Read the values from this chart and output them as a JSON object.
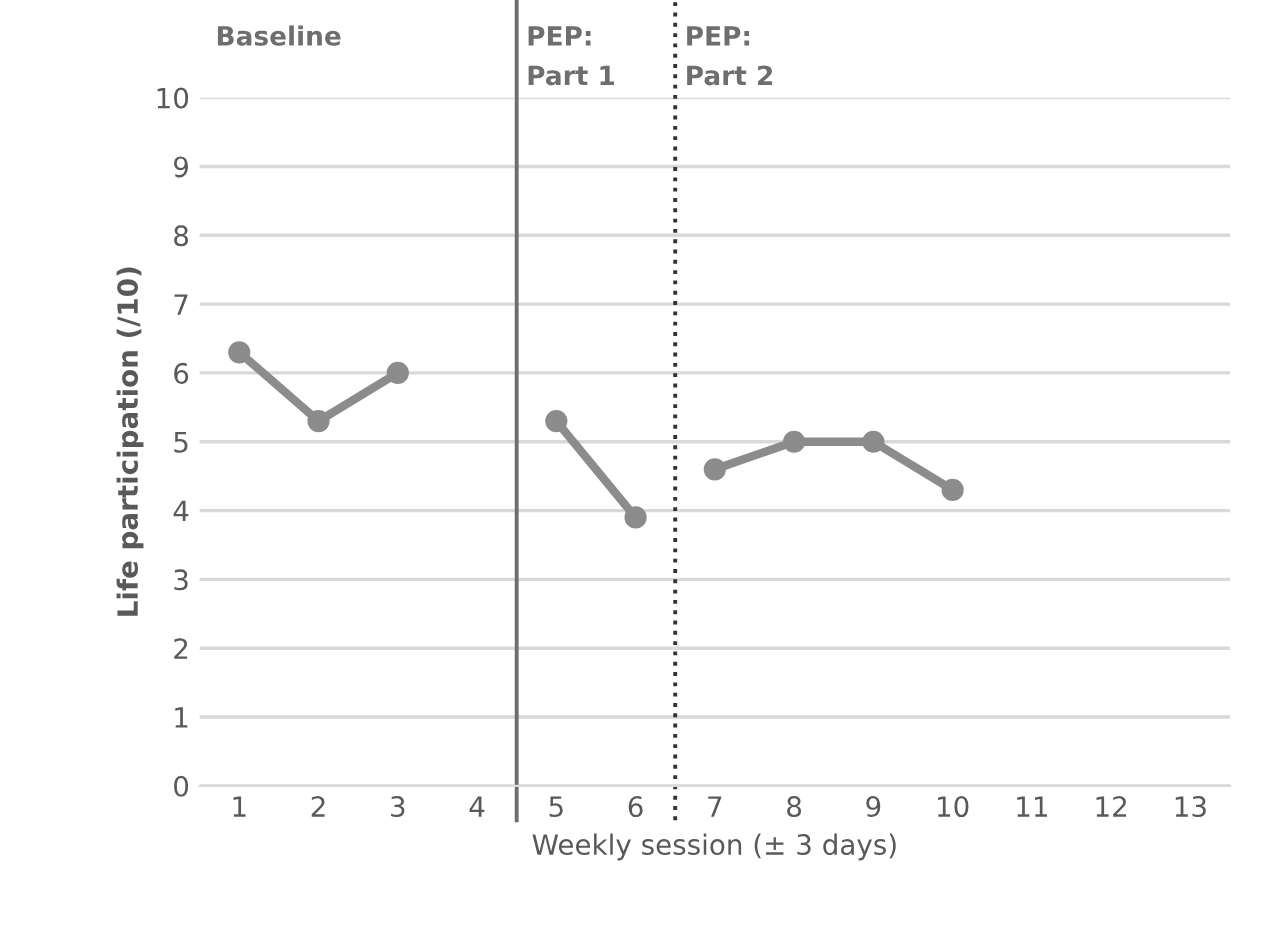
{
  "chart_data": {
    "type": "line",
    "xlabel": "Weekly session (± 3 days)",
    "ylabel": "Life participation (/10)",
    "series": [
      {
        "color": "#8c8c8c",
        "x": [
          1,
          2,
          3
        ],
        "values": [
          6.3,
          5.3,
          6.0
        ]
      },
      {
        "color": "#8c8c8c",
        "x": [
          5,
          6
        ],
        "values": [
          5.3,
          3.9
        ]
      },
      {
        "color": "#8c8c8c",
        "x": [
          7,
          8,
          9,
          10
        ],
        "values": [
          4.6,
          5.0,
          5.0,
          4.3
        ]
      }
    ],
    "xlim": [
      0.5,
      13.5
    ],
    "xticks": [
      1,
      2,
      3,
      4,
      5,
      6,
      7,
      8,
      9,
      10,
      11,
      12,
      13
    ],
    "ylim": [
      0,
      10
    ],
    "yticks": [
      0,
      1,
      2,
      3,
      4,
      5,
      6,
      7,
      8,
      9,
      10
    ],
    "grid": "y",
    "marker": "circle",
    "line_style": "solid",
    "ref_lines": [
      {
        "axis": "x",
        "value": 4.5,
        "label": "PEP:\nPart 1",
        "color": "#6e6e6e",
        "line_style": "solid"
      },
      {
        "axis": "x",
        "value": 6.5,
        "label": "PEP:\nPart 2",
        "color": "#333333",
        "line_style": "dotted"
      }
    ],
    "annotations": [
      "Baseline"
    ]
  }
}
